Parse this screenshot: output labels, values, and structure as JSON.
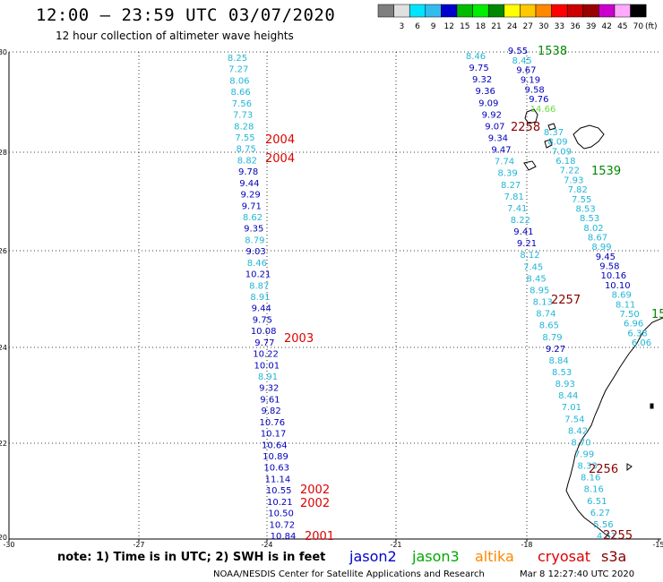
{
  "header": {
    "title": "12:00 — 23:59 UTC 03/07/2020",
    "subtitle": "12 hour collection of altimeter wave heights"
  },
  "legend": {
    "unit": "(ft)",
    "swatches": [
      {
        "label": "",
        "color": "#7f7f7f"
      },
      {
        "label": "3",
        "color": "#e0e0e0"
      },
      {
        "label": "6",
        "color": "#00e5ff"
      },
      {
        "label": "9",
        "color": "#33bbee"
      },
      {
        "label": "12",
        "color": "#0000cc"
      },
      {
        "label": "15",
        "color": "#00bb00"
      },
      {
        "label": "18",
        "color": "#00ee00"
      },
      {
        "label": "21",
        "color": "#008800"
      },
      {
        "label": "24",
        "color": "#ffff00"
      },
      {
        "label": "27",
        "color": "#ffc800"
      },
      {
        "label": "30",
        "color": "#ff8800"
      },
      {
        "label": "33",
        "color": "#ff0000"
      },
      {
        "label": "36",
        "color": "#cc0000"
      },
      {
        "label": "39",
        "color": "#990000"
      },
      {
        "label": "42",
        "color": "#cc00cc"
      },
      {
        "label": "45",
        "color": "#ffaaff"
      },
      {
        "label": "70",
        "color": "#000000"
      }
    ]
  },
  "map": {
    "lat_labels": [
      "30",
      "28",
      "26",
      "24",
      "22",
      "20"
    ],
    "lon_labels": [
      "-30",
      "-27",
      "-24",
      "-21",
      "-18",
      "-15"
    ]
  },
  "colors": {
    "c6": "#22b6d6",
    "c9": "#0000bb",
    "c12g": "#66dd44",
    "red": "#dd0000",
    "dkred": "#880000",
    "green": "#008800"
  },
  "tracks": {
    "left": {
      "values": [
        {
          "v": "8.25",
          "c": "c6"
        },
        {
          "v": "7.27",
          "c": "c6"
        },
        {
          "v": "8.06",
          "c": "c6"
        },
        {
          "v": "8.66",
          "c": "c6"
        },
        {
          "v": "7.56",
          "c": "c6"
        },
        {
          "v": "7.73",
          "c": "c6"
        },
        {
          "v": "8.28",
          "c": "c6"
        },
        {
          "v": "7.55",
          "c": "c6"
        },
        {
          "v": "8.75",
          "c": "c6"
        },
        {
          "v": "8.82",
          "c": "c6"
        },
        {
          "v": "9.78",
          "c": "c9"
        },
        {
          "v": "9.44",
          "c": "c9"
        },
        {
          "v": "9.29",
          "c": "c9"
        },
        {
          "v": "9.71",
          "c": "c9"
        },
        {
          "v": "8.62",
          "c": "c6"
        },
        {
          "v": "9.35",
          "c": "c9"
        },
        {
          "v": "8.79",
          "c": "c6"
        },
        {
          "v": "9.03",
          "c": "c9"
        },
        {
          "v": "8.46",
          "c": "c6"
        },
        {
          "v": "10.21",
          "c": "c9"
        },
        {
          "v": "8.87",
          "c": "c6"
        },
        {
          "v": "8.91",
          "c": "c6"
        },
        {
          "v": "9.44",
          "c": "c9"
        },
        {
          "v": "9.75",
          "c": "c9"
        },
        {
          "v": "10.08",
          "c": "c9"
        },
        {
          "v": "9.77",
          "c": "c9"
        },
        {
          "v": "10.22",
          "c": "c9"
        },
        {
          "v": "10.01",
          "c": "c9"
        },
        {
          "v": "8.91",
          "c": "c6"
        },
        {
          "v": "9.32",
          "c": "c9"
        },
        {
          "v": "9.61",
          "c": "c9"
        },
        {
          "v": "9.82",
          "c": "c9"
        },
        {
          "v": "10.76",
          "c": "c9"
        },
        {
          "v": "10.17",
          "c": "c9"
        },
        {
          "v": "10.64",
          "c": "c9"
        },
        {
          "v": "10.89",
          "c": "c9"
        },
        {
          "v": "10.63",
          "c": "c9"
        },
        {
          "v": "11.14",
          "c": "c9"
        },
        {
          "v": "10.55",
          "c": "c9"
        },
        {
          "v": "10.21",
          "c": "c9"
        },
        {
          "v": "10.50",
          "c": "c9"
        },
        {
          "v": "10.72",
          "c": "c9"
        },
        {
          "v": "10.84",
          "c": "c9"
        }
      ]
    },
    "middle": {
      "values": [
        {
          "v": "8.46",
          "c": "c6"
        },
        {
          "v": "9.75",
          "c": "c9"
        },
        {
          "v": "9.32",
          "c": "c9"
        },
        {
          "v": "9.36",
          "c": "c9"
        },
        {
          "v": "9.09",
          "c": "c9"
        },
        {
          "v": "9.92",
          "c": "c9"
        },
        {
          "v": "9.07",
          "c": "c9"
        },
        {
          "v": "9.34",
          "c": "c9"
        },
        {
          "v": "9.47",
          "c": "c9"
        },
        {
          "v": "7.74",
          "c": "c6"
        },
        {
          "v": "8.39",
          "c": "c6"
        },
        {
          "v": "8.27",
          "c": "c6"
        },
        {
          "v": "7.81",
          "c": "c6"
        },
        {
          "v": "7.41",
          "c": "c6"
        },
        {
          "v": "8.22",
          "c": "c6"
        },
        {
          "v": "9.41",
          "c": "c9"
        },
        {
          "v": "9.21",
          "c": "c9"
        },
        {
          "v": "8.12",
          "c": "c6"
        },
        {
          "v": "7.45",
          "c": "c6"
        },
        {
          "v": "8.45",
          "c": "c6"
        },
        {
          "v": "8.95",
          "c": "c6"
        },
        {
          "v": "8.13",
          "c": "c6"
        },
        {
          "v": "8.74",
          "c": "c6"
        },
        {
          "v": "8.65",
          "c": "c6"
        },
        {
          "v": "8.79",
          "c": "c6"
        },
        {
          "v": "9.27",
          "c": "c9"
        },
        {
          "v": "8.84",
          "c": "c6"
        },
        {
          "v": "8.53",
          "c": "c6"
        },
        {
          "v": "8.93",
          "c": "c6"
        },
        {
          "v": "8.44",
          "c": "c6"
        },
        {
          "v": "7.01",
          "c": "c6"
        },
        {
          "v": "7.54",
          "c": "c6"
        },
        {
          "v": "8.42",
          "c": "c6"
        },
        {
          "v": "8.70",
          "c": "c6"
        },
        {
          "v": "7.99",
          "c": "c6"
        },
        {
          "v": "8.33",
          "c": "c6"
        },
        {
          "v": "8.16",
          "c": "c6"
        },
        {
          "v": "8.16",
          "c": "c6"
        },
        {
          "v": "6.51",
          "c": "c6"
        },
        {
          "v": "6.27",
          "c": "c6"
        },
        {
          "v": "5.56",
          "c": "c6"
        },
        {
          "v": "4.61",
          "c": "c6"
        }
      ]
    },
    "top": {
      "values": [
        {
          "v": "9.55",
          "c": "c9"
        },
        {
          "v": "8.45",
          "c": "c6"
        },
        {
          "v": "9.67",
          "c": "c9"
        },
        {
          "v": "9.19",
          "c": "c9"
        },
        {
          "v": "9.58",
          "c": "c9"
        },
        {
          "v": "9.76",
          "c": "c9"
        },
        {
          "v": "14.66",
          "c": "c12g"
        }
      ]
    },
    "right": {
      "values": [
        {
          "v": "8.37",
          "c": "c6"
        },
        {
          "v": "8.09",
          "c": "c6"
        },
        {
          "v": "7.09",
          "c": "c6"
        },
        {
          "v": "6.18",
          "c": "c6"
        },
        {
          "v": "7.22",
          "c": "c6"
        },
        {
          "v": "7.93",
          "c": "c6"
        },
        {
          "v": "7.82",
          "c": "c6"
        },
        {
          "v": "7.55",
          "c": "c6"
        },
        {
          "v": "8.53",
          "c": "c6"
        },
        {
          "v": "8.53",
          "c": "c6"
        },
        {
          "v": "8.02",
          "c": "c6"
        },
        {
          "v": "8.67",
          "c": "c6"
        },
        {
          "v": "8.99",
          "c": "c6"
        },
        {
          "v": "9.45",
          "c": "c9"
        },
        {
          "v": "9.58",
          "c": "c9"
        },
        {
          "v": "10.16",
          "c": "c9"
        },
        {
          "v": "10.10",
          "c": "c9"
        },
        {
          "v": "8.69",
          "c": "c6"
        },
        {
          "v": "8.11",
          "c": "c6"
        },
        {
          "v": "7.50",
          "c": "c6"
        },
        {
          "v": "6.96",
          "c": "c6"
        },
        {
          "v": "6.38",
          "c": "c6"
        },
        {
          "v": "6.06",
          "c": "c6"
        }
      ]
    }
  },
  "time_labels": [
    {
      "text": "2004",
      "c": "red"
    },
    {
      "text": "2004",
      "c": "red"
    },
    {
      "text": "2003",
      "c": "red"
    },
    {
      "text": "2002",
      "c": "red"
    },
    {
      "text": "2002",
      "c": "red"
    },
    {
      "text": "2001",
      "c": "red"
    },
    {
      "text": "1538",
      "c": "green"
    },
    {
      "text": "1539",
      "c": "green"
    },
    {
      "text": "15",
      "c": "green"
    },
    {
      "text": "2258",
      "c": "dkred"
    },
    {
      "text": "2257",
      "c": "dkred"
    },
    {
      "text": "2256",
      "c": "dkred"
    },
    {
      "text": "2255",
      "c": "dkred"
    }
  ],
  "footer": {
    "note": "note: 1) Time is in UTC; 2) SWH is in feet",
    "credit": "NOAA/NESDIS Center for Satellite Applications and Research",
    "timestamp": "Mar  8 12:27:40 UTC 2020",
    "satellites": [
      {
        "name": "jason2",
        "color": "#0000cc"
      },
      {
        "name": "jason3",
        "color": "#00aa00"
      },
      {
        "name": "altika",
        "color": "#ff8800"
      },
      {
        "name": "cryosat",
        "color": "#dd0000"
      },
      {
        "name": "s3a",
        "color": "#880000"
      }
    ]
  }
}
